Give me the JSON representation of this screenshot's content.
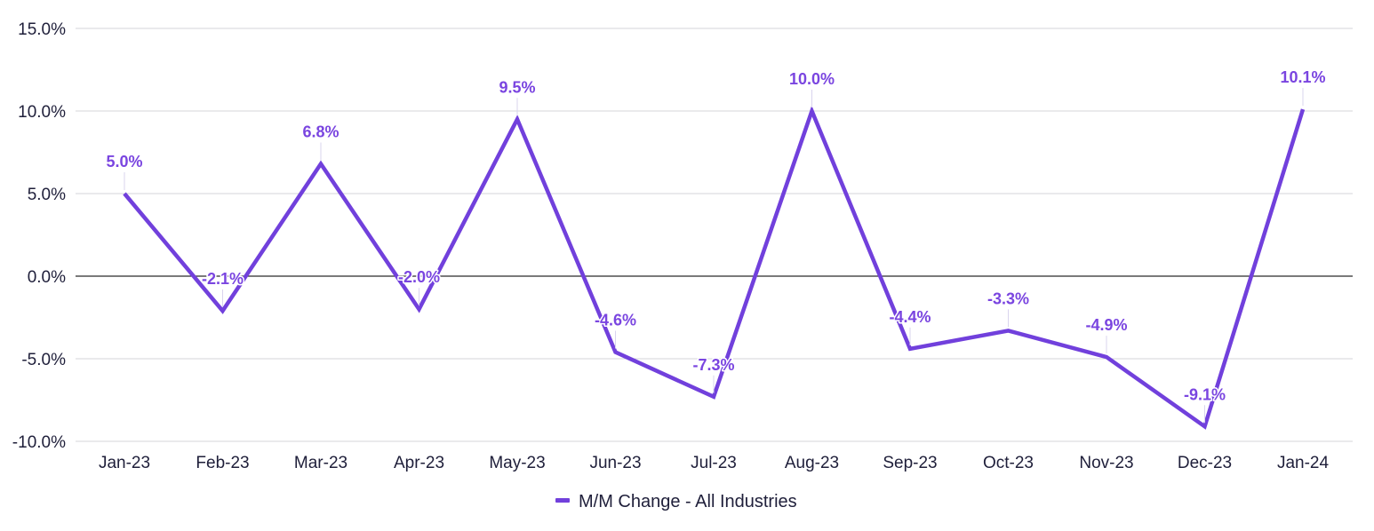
{
  "chart_data": {
    "type": "line",
    "categories": [
      "Jan-23",
      "Feb-23",
      "Mar-23",
      "Apr-23",
      "May-23",
      "Jun-23",
      "Jul-23",
      "Aug-23",
      "Sep-23",
      "Oct-23",
      "Nov-23",
      "Dec-23",
      "Jan-24"
    ],
    "series": [
      {
        "name": "M/M Change - All Industries",
        "values": [
          5.0,
          -2.1,
          6.8,
          -2.0,
          9.5,
          -4.6,
          -7.3,
          10.0,
          -4.4,
          -3.3,
          -4.9,
          -9.1,
          10.1
        ],
        "data_labels": [
          "5.0%",
          "-2.1%",
          "6.8%",
          "-2.0%",
          "9.5%",
          "-4.6%",
          "-7.3%",
          "10.0%",
          "-4.4%",
          "-3.3%",
          "-4.9%",
          "-9.1%",
          "10.1%"
        ]
      }
    ],
    "y_ticks": [
      15.0,
      10.0,
      5.0,
      0.0,
      -5.0,
      -10.0
    ],
    "y_tick_labels": [
      "15.0%",
      "10.0%",
      "5.0%",
      "0.0%",
      "-5.0%",
      "-10.0%"
    ],
    "ylim": [
      -10,
      15
    ],
    "grid": true,
    "legend_position": "bottom",
    "colors": {
      "series": "#7140dc",
      "label": "#7a45e0",
      "grid": "#d4d4d8",
      "zero_line": "#2b2b2b"
    }
  }
}
